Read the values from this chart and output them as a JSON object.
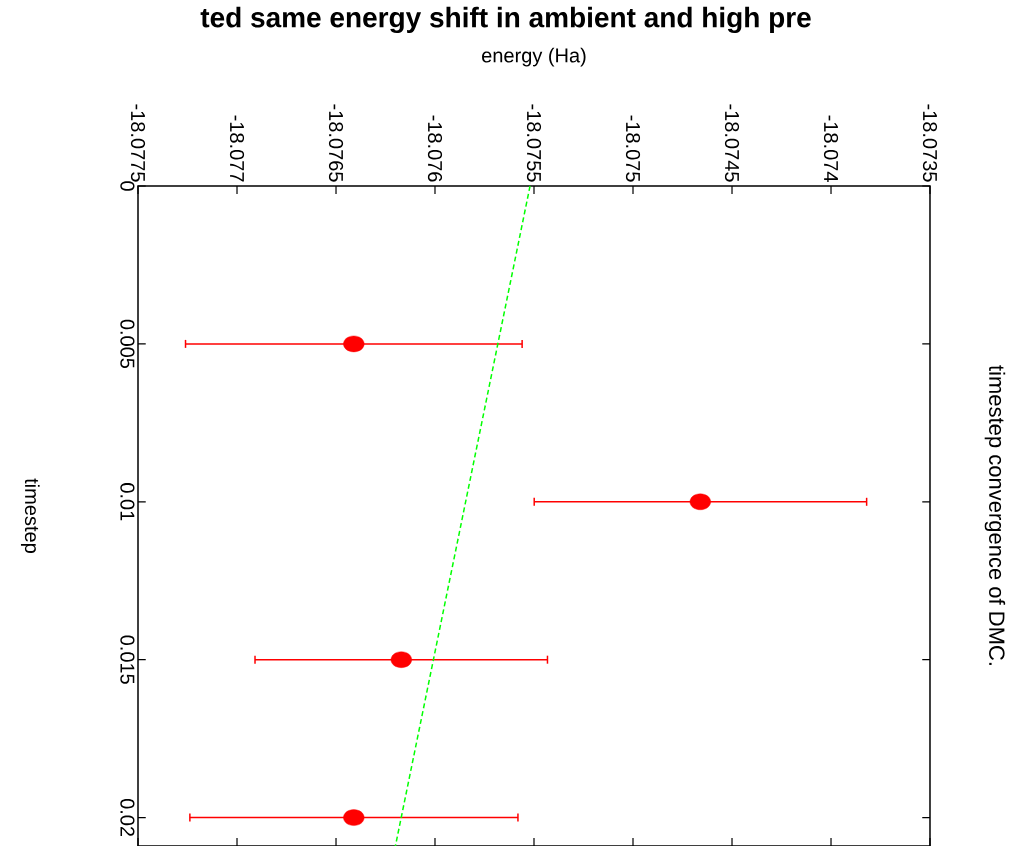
{
  "chart_data": {
    "type": "scatter",
    "title": "timestep convergence of DMC.",
    "xlabel": "energy (Ha)",
    "ylabel": "timestep",
    "annotations": [
      "ted same energy shift in ambient and high pre"
    ],
    "xlim": [
      -18.0775,
      -18.0735
    ],
    "ylim": [
      0.0209,
      0
    ],
    "xticks": [
      -18.0775,
      -18.077,
      -18.0765,
      -18.076,
      -18.0755,
      -18.075,
      -18.0745,
      -18.074,
      -18.0735
    ],
    "yticks": [
      0,
      0.005,
      0.01,
      0.015,
      0.02
    ],
    "series": [
      {
        "type": "scatter",
        "color": "#ff0000",
        "marker": "circle",
        "x": [
          -18.07641,
          -18.07466,
          -18.07617,
          -18.07641
        ],
        "values": [
          0.005,
          0.01,
          0.015,
          0.02
        ],
        "xerrors": [
          0.00085,
          0.00084,
          0.00074,
          0.00083
        ]
      },
      {
        "type": "line",
        "color": "#00ff00",
        "line_style": "dashed",
        "marker": "none",
        "x": [
          -18.07552,
          -18.0762
        ],
        "values": [
          0,
          0.0209
        ]
      }
    ]
  }
}
